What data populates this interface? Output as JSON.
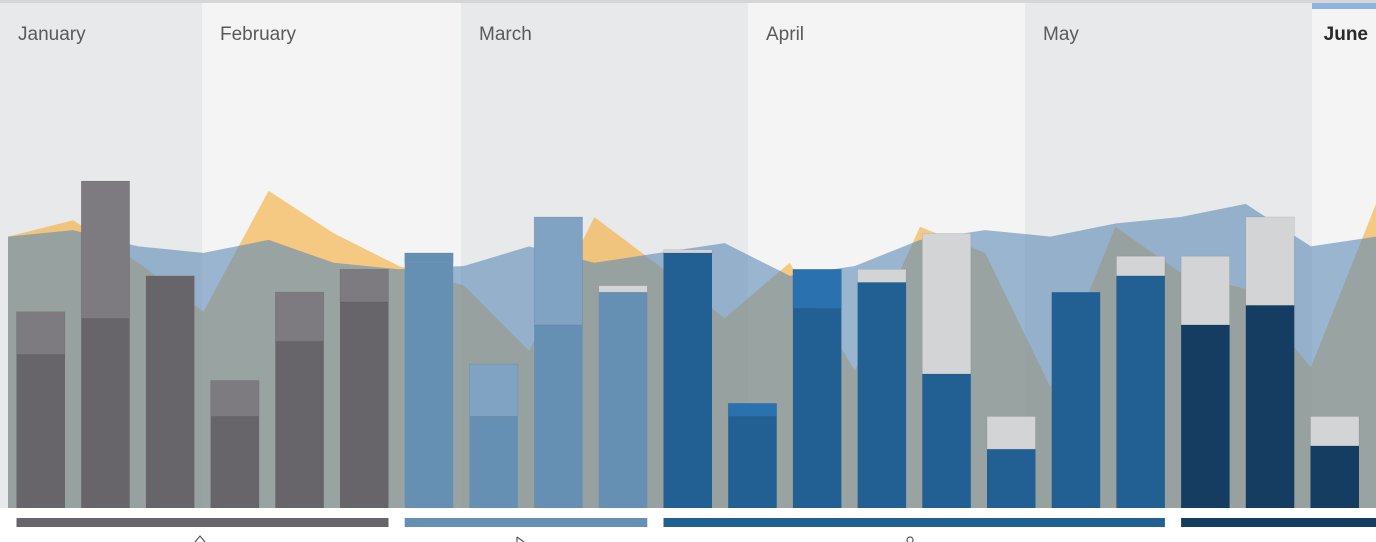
{
  "chart_data": {
    "type": "bar",
    "months": [
      {
        "label": "January",
        "band_color": "#e8e9eb"
      },
      {
        "label": "February",
        "band_color": "#f4f4f5"
      },
      {
        "label": "March",
        "band_color": "#e8e9eb"
      },
      {
        "label": "April",
        "band_color": "#f4f4f5"
      },
      {
        "label": "May",
        "band_color": "#e8e9eb"
      },
      {
        "label": "June",
        "band_color": "#f4f4f5",
        "current": true
      }
    ],
    "ylim": [
      0,
      100
    ],
    "bars": [
      {
        "base": 47,
        "top": 60,
        "base_color": "#676569",
        "top_color": "#7d7b80"
      },
      {
        "base": 58,
        "top": 100,
        "base_color": "#676569",
        "top_color": "#7d7b80"
      },
      {
        "base": 71,
        "top": 71,
        "base_color": "#676569",
        "top_color": "#7d7b80"
      },
      {
        "base": 28,
        "top": 39,
        "base_color": "#676569",
        "top_color": "#7d7b80"
      },
      {
        "base": 51,
        "top": 66,
        "base_color": "#676569",
        "top_color": "#7d7b80"
      },
      {
        "base": 63,
        "top": 73,
        "base_color": "#676569",
        "top_color": "#7d7b80"
      },
      {
        "base": 75,
        "top": 78,
        "base_color": "#6590b4",
        "top_color": "#6590b4"
      },
      {
        "base": 28,
        "top": 44,
        "base_color": "#6590b4",
        "top_color": "#80a3c4"
      },
      {
        "base": 56,
        "top": 89,
        "base_color": "#6590b4",
        "top_color": "#80a3c4"
      },
      {
        "base": 66,
        "top": 68,
        "base_color": "#6590b4",
        "top_color": "#d3d4d6"
      },
      {
        "base": 78,
        "top": 79,
        "base_color": "#226093",
        "top_color": "#d3d4d6"
      },
      {
        "base": 28,
        "top": 32,
        "base_color": "#226093",
        "top_color": "#2a71b0"
      },
      {
        "base": 61,
        "top": 73,
        "base_color": "#226093",
        "top_color": "#2a71b0"
      },
      {
        "base": 69,
        "top": 73,
        "base_color": "#226093",
        "top_color": "#d3d4d6"
      },
      {
        "base": 41,
        "top": 84,
        "base_color": "#226093",
        "top_color": "#d3d4d6"
      },
      {
        "base": 18,
        "top": 28,
        "base_color": "#226093",
        "top_color": "#d3d4d6"
      },
      {
        "base": 66,
        "top": 66,
        "base_color": "#226093",
        "top_color": "#d3d4d6"
      },
      {
        "base": 71,
        "top": 77,
        "base_color": "#226093",
        "top_color": "#d3d4d6"
      },
      {
        "base": 56,
        "top": 77,
        "base_color": "#153d62",
        "top_color": "#d3d4d6"
      },
      {
        "base": 62,
        "top": 89,
        "base_color": "#153d62",
        "top_color": "#d3d4d6"
      },
      {
        "base": 19,
        "top": 28,
        "base_color": "#153d62",
        "top_color": "#d3d4d6"
      }
    ],
    "area_series": [
      {
        "color": "#f5a623",
        "opacity": 0.55,
        "values": [
          83,
          88,
          75,
          60,
          97,
          84,
          74,
          68,
          48,
          89,
          74,
          58,
          75,
          42,
          86,
          78,
          37,
          86,
          72,
          67,
          43,
          93
        ]
      },
      {
        "color": "#5b8ab6",
        "opacity": 0.6,
        "values": [
          83,
          85,
          80,
          78,
          82,
          75,
          73,
          74,
          80,
          75,
          78,
          81,
          71,
          74,
          82,
          85,
          83,
          87,
          89,
          93,
          80,
          83
        ]
      }
    ],
    "groups": [
      {
        "bars": 6,
        "color": "#676569"
      },
      {
        "bars": 4,
        "color": "#6590b4"
      },
      {
        "bars": 8,
        "color": "#226093"
      },
      {
        "bars": 3,
        "color": "#153d62"
      }
    ],
    "group_icons": [
      "caret-up-icon",
      "pointer-icon",
      "pin-icon"
    ],
    "current_indicator_color": "#8fb2e3"
  }
}
